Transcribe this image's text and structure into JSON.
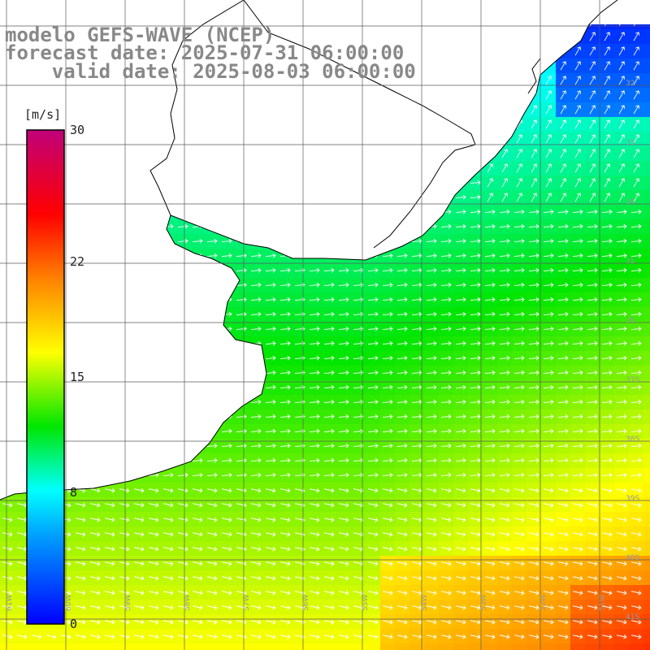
{
  "title": {
    "line1": "modelo GEFS-WAVE (NCEP)",
    "line2": "forecast date: 2025-07-31 06:00:00",
    "line3": "    valid date: 2025-08-03 06:00:00"
  },
  "colorbar": {
    "unit": "[m/s]",
    "ticks": [
      "30",
      "22",
      "15",
      "8",
      "0"
    ],
    "tick_values": [
      30,
      22,
      15,
      8,
      0
    ],
    "min": 0,
    "max": 30,
    "colors": [
      "#0000ff",
      "#00a0ff",
      "#00ffff",
      "#00e600",
      "#ffff00",
      "#ff8000",
      "#ff0000",
      "#c0007a"
    ],
    "stops": [
      0,
      0.18,
      0.27,
      0.4,
      0.55,
      0.7,
      0.83,
      1
    ]
  },
  "grid": {
    "lat_labels": [
      "32",
      "33",
      "34",
      "35",
      "36",
      "37S",
      "38S",
      "39S",
      "40S",
      "41S"
    ],
    "lon_labels": [
      "61W",
      "60W",
      "59W",
      "58W",
      "57W",
      "56W",
      "55W",
      "54W",
      "53W",
      "52W",
      "51W"
    ]
  },
  "colors": {
    "land": "#ffffff",
    "coast": "#000000",
    "grid": "#5a5a5a",
    "arrow": "#ffffff"
  },
  "wind_direction": "from west-southwest toward east-northeast"
}
